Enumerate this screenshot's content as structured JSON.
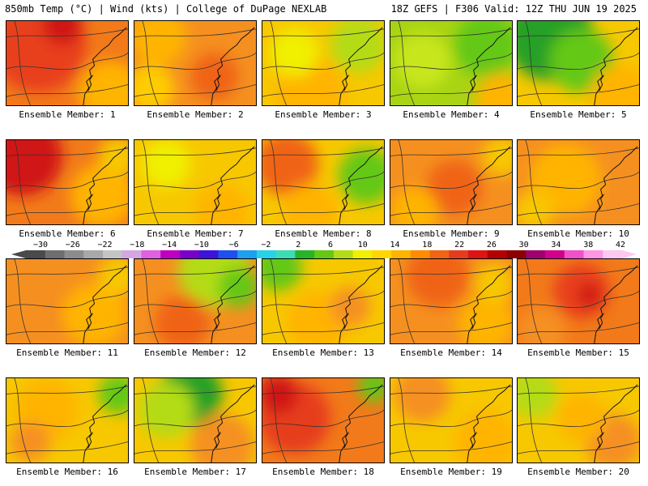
{
  "header": {
    "left": "850mb Temp (°C) | Wind (kts) | College of DuPage NEXLAB",
    "right": "18Z GEFS | F306 Valid: 12Z THU JUN 19 2025"
  },
  "colorbar": {
    "tick_labels": [
      "−30",
      "−26",
      "−22",
      "−18",
      "−14",
      "−10",
      "−6",
      "−2",
      "2",
      "6",
      "10",
      "14",
      "18",
      "22",
      "26",
      "30",
      "34",
      "38",
      "42"
    ],
    "colors": [
      "#4a4a4a",
      "#6e6e6e",
      "#8c8c8c",
      "#a8a8a8",
      "#c4c4c4",
      "#d4a6e6",
      "#e060e0",
      "#c000c0",
      "#7a00c8",
      "#3c14dc",
      "#1e50f0",
      "#1ea0f0",
      "#28d2e6",
      "#3cdcb4",
      "#28b428",
      "#64c814",
      "#b4dc14",
      "#f0f000",
      "#ffd700",
      "#ffb400",
      "#ff8c00",
      "#f06414",
      "#e63c1e",
      "#dc1414",
      "#b40000",
      "#8c0000",
      "#a0006e",
      "#d2008c",
      "#f050c8",
      "#ff96e6",
      "#ffc8f0"
    ]
  },
  "panels": [
    {
      "label": "Ensemble Member: 1",
      "base": "#f27a1a",
      "blobs": [
        {
          "c": "#e8401a",
          "x": 40,
          "y": 30,
          "r": 60
        },
        {
          "c": "#d01414",
          "x": 70,
          "y": 5,
          "r": 25
        },
        {
          "c": "#ffb400",
          "x": 130,
          "y": 90,
          "r": 40
        }
      ]
    },
    {
      "label": "Ensemble Member: 2",
      "base": "#f59020",
      "blobs": [
        {
          "c": "#ffb400",
          "x": 30,
          "y": 20,
          "r": 35
        },
        {
          "c": "#ffcc00",
          "x": 20,
          "y": 85,
          "r": 30
        },
        {
          "c": "#f06414",
          "x": 100,
          "y": 70,
          "r": 30
        }
      ]
    },
    {
      "label": "Ensemble Member: 3",
      "base": "#f7c800",
      "blobs": [
        {
          "c": "#ffb400",
          "x": 60,
          "y": 90,
          "r": 45
        },
        {
          "c": "#b4dc14",
          "x": 120,
          "y": 30,
          "r": 35
        },
        {
          "c": "#f0f000",
          "x": 40,
          "y": 40,
          "r": 30
        }
      ]
    },
    {
      "label": "Ensemble Member: 4",
      "base": "#a8d414",
      "blobs": [
        {
          "c": "#64c814",
          "x": 120,
          "y": 30,
          "r": 40
        },
        {
          "c": "#ffb400",
          "x": 140,
          "y": 100,
          "r": 35
        },
        {
          "c": "#c8e61e",
          "x": 40,
          "y": 50,
          "r": 35
        }
      ]
    },
    {
      "label": "Ensemble Member: 5",
      "base": "#f7c800",
      "blobs": [
        {
          "c": "#28a028",
          "x": 40,
          "y": 20,
          "r": 55
        },
        {
          "c": "#64c814",
          "x": 80,
          "y": 50,
          "r": 40
        },
        {
          "c": "#ffb400",
          "x": 130,
          "y": 95,
          "r": 40
        }
      ]
    },
    {
      "label": "Ensemble Member: 6",
      "base": "#f27a1a",
      "blobs": [
        {
          "c": "#d01414",
          "x": 20,
          "y": 20,
          "r": 50
        },
        {
          "c": "#ffb400",
          "x": 120,
          "y": 70,
          "r": 40
        },
        {
          "c": "#f7c800",
          "x": 140,
          "y": 20,
          "r": 25
        }
      ]
    },
    {
      "label": "Ensemble Member: 7",
      "base": "#f7c800",
      "blobs": [
        {
          "c": "#ffb400",
          "x": 110,
          "y": 90,
          "r": 35
        },
        {
          "c": "#f0f000",
          "x": 40,
          "y": 30,
          "r": 30
        }
      ]
    },
    {
      "label": "Ensemble Member: 8",
      "base": "#f7c800",
      "blobs": [
        {
          "c": "#f06414",
          "x": 30,
          "y": 30,
          "r": 40
        },
        {
          "c": "#64c814",
          "x": 130,
          "y": 45,
          "r": 35
        },
        {
          "c": "#ffb400",
          "x": 60,
          "y": 90,
          "r": 35
        }
      ]
    },
    {
      "label": "Ensemble Member: 9",
      "base": "#f59020",
      "blobs": [
        {
          "c": "#f06414",
          "x": 80,
          "y": 60,
          "r": 35
        },
        {
          "c": "#ffb400",
          "x": 30,
          "y": 90,
          "r": 30
        },
        {
          "c": "#f7c800",
          "x": 140,
          "y": 20,
          "r": 25
        }
      ]
    },
    {
      "label": "Ensemble Member: 10",
      "base": "#f59020",
      "blobs": [
        {
          "c": "#ffb400",
          "x": 60,
          "y": 50,
          "r": 45
        },
        {
          "c": "#f7c800",
          "x": 20,
          "y": 90,
          "r": 25
        }
      ]
    },
    {
      "label": "Ensemble Member: 11",
      "base": "#f59020",
      "blobs": [
        {
          "c": "#ffb400",
          "x": 110,
          "y": 70,
          "r": 40
        },
        {
          "c": "#f7c800",
          "x": 140,
          "y": 20,
          "r": 25
        }
      ]
    },
    {
      "label": "Ensemble Member: 12",
      "base": "#f59020",
      "blobs": [
        {
          "c": "#b4dc14",
          "x": 100,
          "y": 15,
          "r": 45
        },
        {
          "c": "#64c814",
          "x": 130,
          "y": 35,
          "r": 25
        },
        {
          "c": "#f06414",
          "x": 60,
          "y": 80,
          "r": 35
        }
      ]
    },
    {
      "label": "Ensemble Member: 13",
      "base": "#f7c800",
      "blobs": [
        {
          "c": "#ffb400",
          "x": 70,
          "y": 80,
          "r": 40
        },
        {
          "c": "#64c814",
          "x": 20,
          "y": 10,
          "r": 30
        },
        {
          "c": "#f59020",
          "x": 110,
          "y": 60,
          "r": 25
        }
      ]
    },
    {
      "label": "Ensemble Member: 14",
      "base": "#f59020",
      "blobs": [
        {
          "c": "#f06414",
          "x": 60,
          "y": 20,
          "r": 40
        },
        {
          "c": "#ffb400",
          "x": 120,
          "y": 80,
          "r": 35
        },
        {
          "c": "#f7c800",
          "x": 130,
          "y": 30,
          "r": 25
        }
      ]
    },
    {
      "label": "Ensemble Member: 15",
      "base": "#f27a1a",
      "blobs": [
        {
          "c": "#e8401a",
          "x": 80,
          "y": 40,
          "r": 35
        },
        {
          "c": "#d01414",
          "x": 90,
          "y": 45,
          "r": 15
        },
        {
          "c": "#f59020",
          "x": 30,
          "y": 90,
          "r": 30
        }
      ]
    },
    {
      "label": "Ensemble Member: 16",
      "base": "#f7c800",
      "blobs": [
        {
          "c": "#ffb400",
          "x": 50,
          "y": 40,
          "r": 40
        },
        {
          "c": "#64c814",
          "x": 140,
          "y": 20,
          "r": 25
        },
        {
          "c": "#f59020",
          "x": 30,
          "y": 80,
          "r": 25
        }
      ]
    },
    {
      "label": "Ensemble Member: 17",
      "base": "#f7c800",
      "blobs": [
        {
          "c": "#28a028",
          "x": 70,
          "y": 20,
          "r": 40
        },
        {
          "c": "#b4dc14",
          "x": 40,
          "y": 40,
          "r": 35
        },
        {
          "c": "#f59020",
          "x": 110,
          "y": 85,
          "r": 40
        }
      ]
    },
    {
      "label": "Ensemble Member: 18",
      "base": "#f27a1a",
      "blobs": [
        {
          "c": "#e63c1e",
          "x": 40,
          "y": 50,
          "r": 45
        },
        {
          "c": "#d01414",
          "x": 20,
          "y": 20,
          "r": 25
        },
        {
          "c": "#64c814",
          "x": 140,
          "y": 10,
          "r": 20
        }
      ]
    },
    {
      "label": "Ensemble Member: 19",
      "base": "#f7c800",
      "blobs": [
        {
          "c": "#f59020",
          "x": 40,
          "y": 20,
          "r": 35
        },
        {
          "c": "#ffb400",
          "x": 120,
          "y": 80,
          "r": 40
        }
      ]
    },
    {
      "label": "Ensemble Member: 20",
      "base": "#f7c800",
      "blobs": [
        {
          "c": "#b4dc14",
          "x": 20,
          "y": 20,
          "r": 30
        },
        {
          "c": "#f59020",
          "x": 120,
          "y": 80,
          "r": 35
        },
        {
          "c": "#ffb400",
          "x": 80,
          "y": 50,
          "r": 30
        }
      ]
    }
  ]
}
